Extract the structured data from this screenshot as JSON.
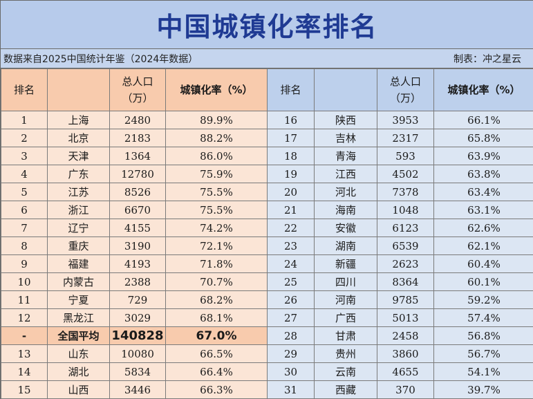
{
  "title": "中国城镇化率排名",
  "source_note": "数据来自2025中国统计年鉴（2024年数据）",
  "author_note": "制表：冲之星云",
  "headers": {
    "rank": "排名",
    "region": "",
    "population_line1": "总人口",
    "population_line2": "（万）",
    "rate": "城镇化率（%）"
  },
  "left_rows": [
    {
      "rank": "1",
      "region": "上海",
      "population": "2480",
      "rate": "89.9%"
    },
    {
      "rank": "2",
      "region": "北京",
      "population": "2183",
      "rate": "88.2%"
    },
    {
      "rank": "3",
      "region": "天津",
      "population": "1364",
      "rate": "86.0%"
    },
    {
      "rank": "4",
      "region": "广东",
      "population": "12780",
      "rate": "75.9%"
    },
    {
      "rank": "5",
      "region": "江苏",
      "population": "8526",
      "rate": "75.5%"
    },
    {
      "rank": "6",
      "region": "浙江",
      "population": "6670",
      "rate": "75.5%"
    },
    {
      "rank": "7",
      "region": "辽宁",
      "population": "4155",
      "rate": "74.2%"
    },
    {
      "rank": "8",
      "region": "重庆",
      "population": "3190",
      "rate": "72.1%"
    },
    {
      "rank": "9",
      "region": "福建",
      "population": "4193",
      "rate": "71.8%"
    },
    {
      "rank": "10",
      "region": "内蒙古",
      "population": "2388",
      "rate": "70.7%"
    },
    {
      "rank": "11",
      "region": "宁夏",
      "population": "729",
      "rate": "68.2%"
    },
    {
      "rank": "12",
      "region": "黑龙江",
      "population": "3029",
      "rate": "68.1%"
    },
    {
      "rank": "-",
      "region": "全国平均",
      "population": "140828",
      "rate": "67.0%",
      "highlight": true
    },
    {
      "rank": "13",
      "region": "山东",
      "population": "10080",
      "rate": "66.5%"
    },
    {
      "rank": "14",
      "region": "湖北",
      "population": "5834",
      "rate": "66.4%"
    },
    {
      "rank": "15",
      "region": "山西",
      "population": "3446",
      "rate": "66.3%"
    }
  ],
  "right_rows": [
    {
      "rank": "16",
      "region": "陕西",
      "population": "3953",
      "rate": "66.1%"
    },
    {
      "rank": "17",
      "region": "吉林",
      "population": "2317",
      "rate": "65.8%"
    },
    {
      "rank": "18",
      "region": "青海",
      "population": "593",
      "rate": "63.9%"
    },
    {
      "rank": "19",
      "region": "江西",
      "population": "4502",
      "rate": "63.8%"
    },
    {
      "rank": "20",
      "region": "河北",
      "population": "7378",
      "rate": "63.4%"
    },
    {
      "rank": "21",
      "region": "海南",
      "population": "1048",
      "rate": "63.1%"
    },
    {
      "rank": "22",
      "region": "安徽",
      "population": "6123",
      "rate": "62.6%"
    },
    {
      "rank": "23",
      "region": "湖南",
      "population": "6539",
      "rate": "62.1%"
    },
    {
      "rank": "24",
      "region": "新疆",
      "population": "2623",
      "rate": "60.4%"
    },
    {
      "rank": "25",
      "region": "四川",
      "population": "8364",
      "rate": "60.1%"
    },
    {
      "rank": "26",
      "region": "河南",
      "population": "9785",
      "rate": "59.2%"
    },
    {
      "rank": "27",
      "region": "广西",
      "population": "5013",
      "rate": "57.4%"
    },
    {
      "rank": "28",
      "region": "甘肃",
      "population": "2458",
      "rate": "56.8%"
    },
    {
      "rank": "29",
      "region": "贵州",
      "population": "3860",
      "rate": "56.7%"
    },
    {
      "rank": "30",
      "region": "云南",
      "population": "4655",
      "rate": "54.1%"
    },
    {
      "rank": "31",
      "region": "西藏",
      "population": "370",
      "rate": "39.7%"
    }
  ]
}
